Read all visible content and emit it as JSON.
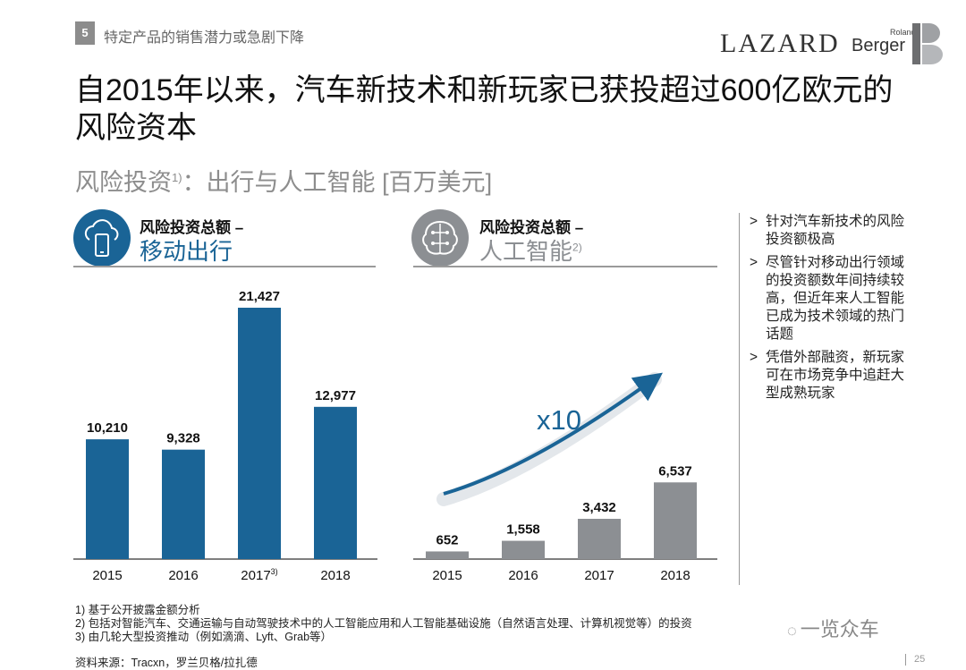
{
  "header": {
    "section_number": "5",
    "section_title": "特定产品的销售潜力或急剧下降",
    "logo_lazard": "LAZARD",
    "logo_roland": "Roland",
    "logo_berger": "Berger"
  },
  "title": "自2015年以来，汽车新技术和新玩家已获投超过600亿欧元的风险资本",
  "subtitle": {
    "text_a": "风险投资",
    "sup": "1)",
    "text_b": "：出行与人工智能 [百万美元]"
  },
  "colors": {
    "mobility_bar": "#1a6496",
    "ai_bar": "#8c8f93",
    "icon_ai": "#8c8f93",
    "arrow": "#1a6496"
  },
  "panels": [
    {
      "label_line1": "风险投资总额 –",
      "label_line2": "移动出行",
      "label_sup": "",
      "icon": "cloud-smartphone-icon"
    },
    {
      "label_line1": "风险投资总额 –",
      "label_line2": "人工智能",
      "label_sup": "2)",
      "icon": "brain-circuit-icon",
      "growth_label": "x10"
    }
  ],
  "chart_data": [
    {
      "type": "bar",
      "title": "风险投资总额 – 移动出行",
      "categories": [
        "2015",
        "2016",
        "2017",
        "2018"
      ],
      "category_sups": [
        "",
        "",
        "3)",
        ""
      ],
      "values": [
        10210,
        9328,
        21427,
        12977
      ],
      "value_labels": [
        "10,210",
        "9,328",
        "21,427",
        "12,977"
      ],
      "ylim": [
        0,
        21427
      ],
      "grid": false
    },
    {
      "type": "bar",
      "title": "风险投资总额 – 人工智能",
      "categories": [
        "2015",
        "2016",
        "2017",
        "2018"
      ],
      "category_sups": [
        "",
        "",
        "",
        ""
      ],
      "values": [
        652,
        1558,
        3432,
        6537
      ],
      "value_labels": [
        "652",
        "1,558",
        "3,432",
        "6,537"
      ],
      "ylim": [
        0,
        21427
      ],
      "grid": false
    }
  ],
  "bullets": [
    "针对汽车新技术的风险投资额极高",
    "尽管针对移动出行领域的投资额数年间持续较高，但近年来人工智能已成为技术领域的热门话题",
    "凭借外部融资，新玩家可在市场竞争中追赶大型成熟玩家"
  ],
  "bullet_marker": ">",
  "footnotes": [
    "1) 基于公开披露金额分析",
    "2) 包括对智能汽车、交通运输与自动驾驶技术中的人工智能应用和人工智能基础设施（自然语言处理、计算机视觉等）的投资",
    "3) 由几轮大型投资推动（例如滴滴、Lyft、Grab等）"
  ],
  "source": "资料来源：Tracxn，罗兰贝格/拉扎德",
  "page_number": "25",
  "watermark": "一览众车"
}
